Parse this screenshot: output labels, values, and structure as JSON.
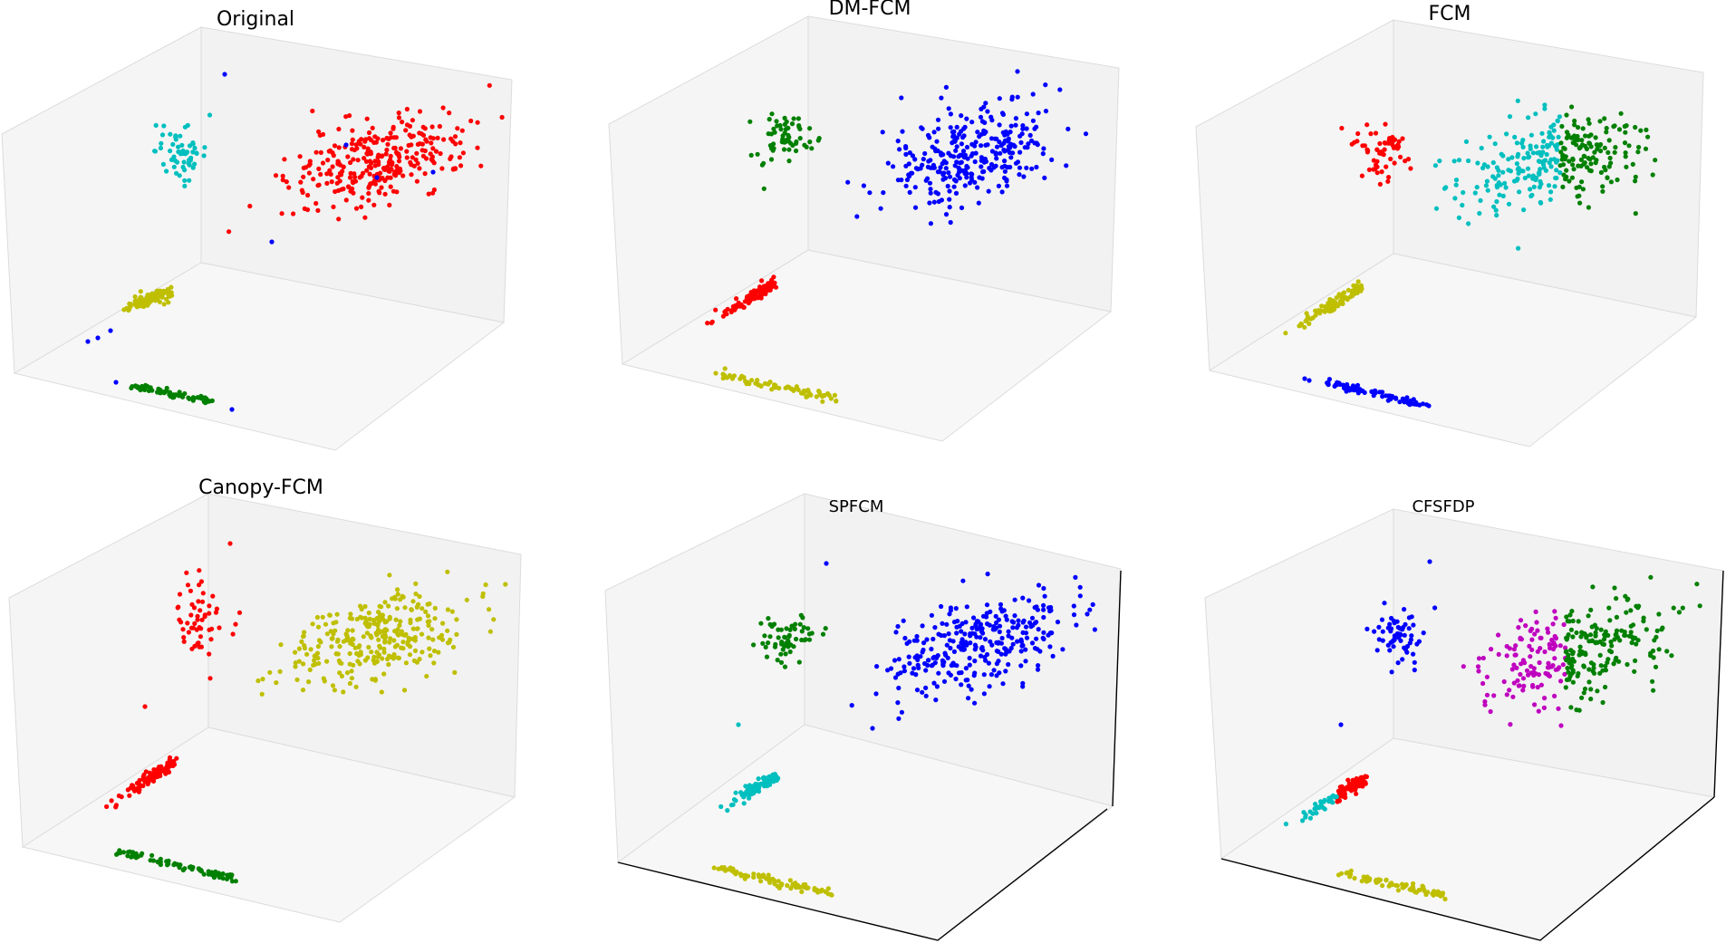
{
  "figure_title": "",
  "colors": {
    "r": "#ff0000",
    "b": "#0000ff",
    "g": "#008000",
    "c": "#00bfbf",
    "y": "#bfbf00",
    "m": "#bf00bf"
  },
  "chart_data": [
    {
      "type": "scatter",
      "title": "Original",
      "axes_visible": false,
      "clusters": [
        {
          "name": "large",
          "color": "r"
        },
        {
          "name": "upper",
          "color": "c"
        },
        {
          "name": "diagonal",
          "color": "y"
        },
        {
          "name": "floor",
          "color": "g"
        },
        {
          "name": "outliers",
          "color": "b"
        }
      ]
    },
    {
      "type": "scatter",
      "title": "DM-FCM",
      "axes_visible": false,
      "clusters": [
        {
          "name": "large",
          "color": "b"
        },
        {
          "name": "upper",
          "color": "g"
        },
        {
          "name": "diagonal",
          "color": "r"
        },
        {
          "name": "floor",
          "color": "y"
        }
      ]
    },
    {
      "type": "scatter",
      "title": "FCM",
      "axes_visible": false,
      "clusters": [
        {
          "name": "large-left",
          "color": "c"
        },
        {
          "name": "large-right",
          "color": "g"
        },
        {
          "name": "upper",
          "color": "r"
        },
        {
          "name": "diagonal",
          "color": "y"
        },
        {
          "name": "floor",
          "color": "b"
        }
      ]
    },
    {
      "type": "scatter",
      "title": "Canopy-FCM",
      "axes_visible": false,
      "clusters": [
        {
          "name": "large",
          "color": "y"
        },
        {
          "name": "upper",
          "color": "r"
        },
        {
          "name": "diagonal",
          "color": "r"
        },
        {
          "name": "floor",
          "color": "g"
        }
      ]
    },
    {
      "type": "scatter",
      "title": "SPFCM",
      "axes_visible": true,
      "clusters": [
        {
          "name": "large",
          "color": "b"
        },
        {
          "name": "upper",
          "color": "g"
        },
        {
          "name": "diagonal",
          "color": "c"
        },
        {
          "name": "floor",
          "color": "y"
        }
      ]
    },
    {
      "type": "scatter",
      "title": "CFSFDP",
      "axes_visible": true,
      "clusters": [
        {
          "name": "large-left",
          "color": "m"
        },
        {
          "name": "large-right",
          "color": "g"
        },
        {
          "name": "upper",
          "color": "b"
        },
        {
          "name": "diagonal-upper",
          "color": "r"
        },
        {
          "name": "diagonal-lower",
          "color": "c"
        },
        {
          "name": "floor",
          "color": "y"
        }
      ]
    }
  ]
}
